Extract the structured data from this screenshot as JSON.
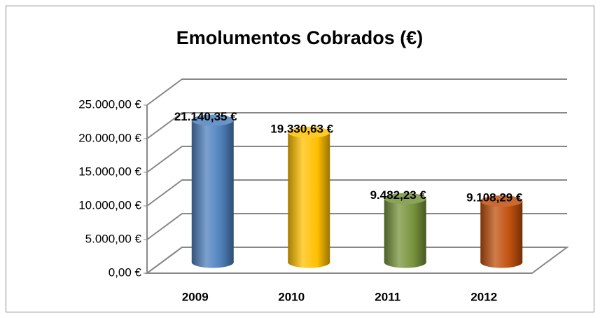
{
  "chart_data": {
    "type": "bar3d",
    "title": "Emolumentos Cobrados (€)",
    "categories": [
      "2009",
      "2010",
      "2011",
      "2012"
    ],
    "values": [
      21140.35,
      19330.63,
      9482.23,
      9108.29
    ],
    "value_labels": [
      "21.140,35 €",
      "19.330,63 €",
      "9.482,23 €",
      "9.108,29 €"
    ],
    "colors": [
      "#4f81bd",
      "#ffc000",
      "#77933c",
      "#c0500e"
    ],
    "ylim": [
      0,
      25000
    ],
    "yticks": [
      {
        "value": 0,
        "label": "0,00 €"
      },
      {
        "value": 5000,
        "label": "5.000,00 €"
      },
      {
        "value": 10000,
        "label": "10.000,00 €"
      },
      {
        "value": 15000,
        "label": "15.000,00 €"
      },
      {
        "value": 20000,
        "label": "20.000,00 €"
      },
      {
        "value": 25000,
        "label": "25.000,00 €"
      }
    ],
    "grid": true
  }
}
